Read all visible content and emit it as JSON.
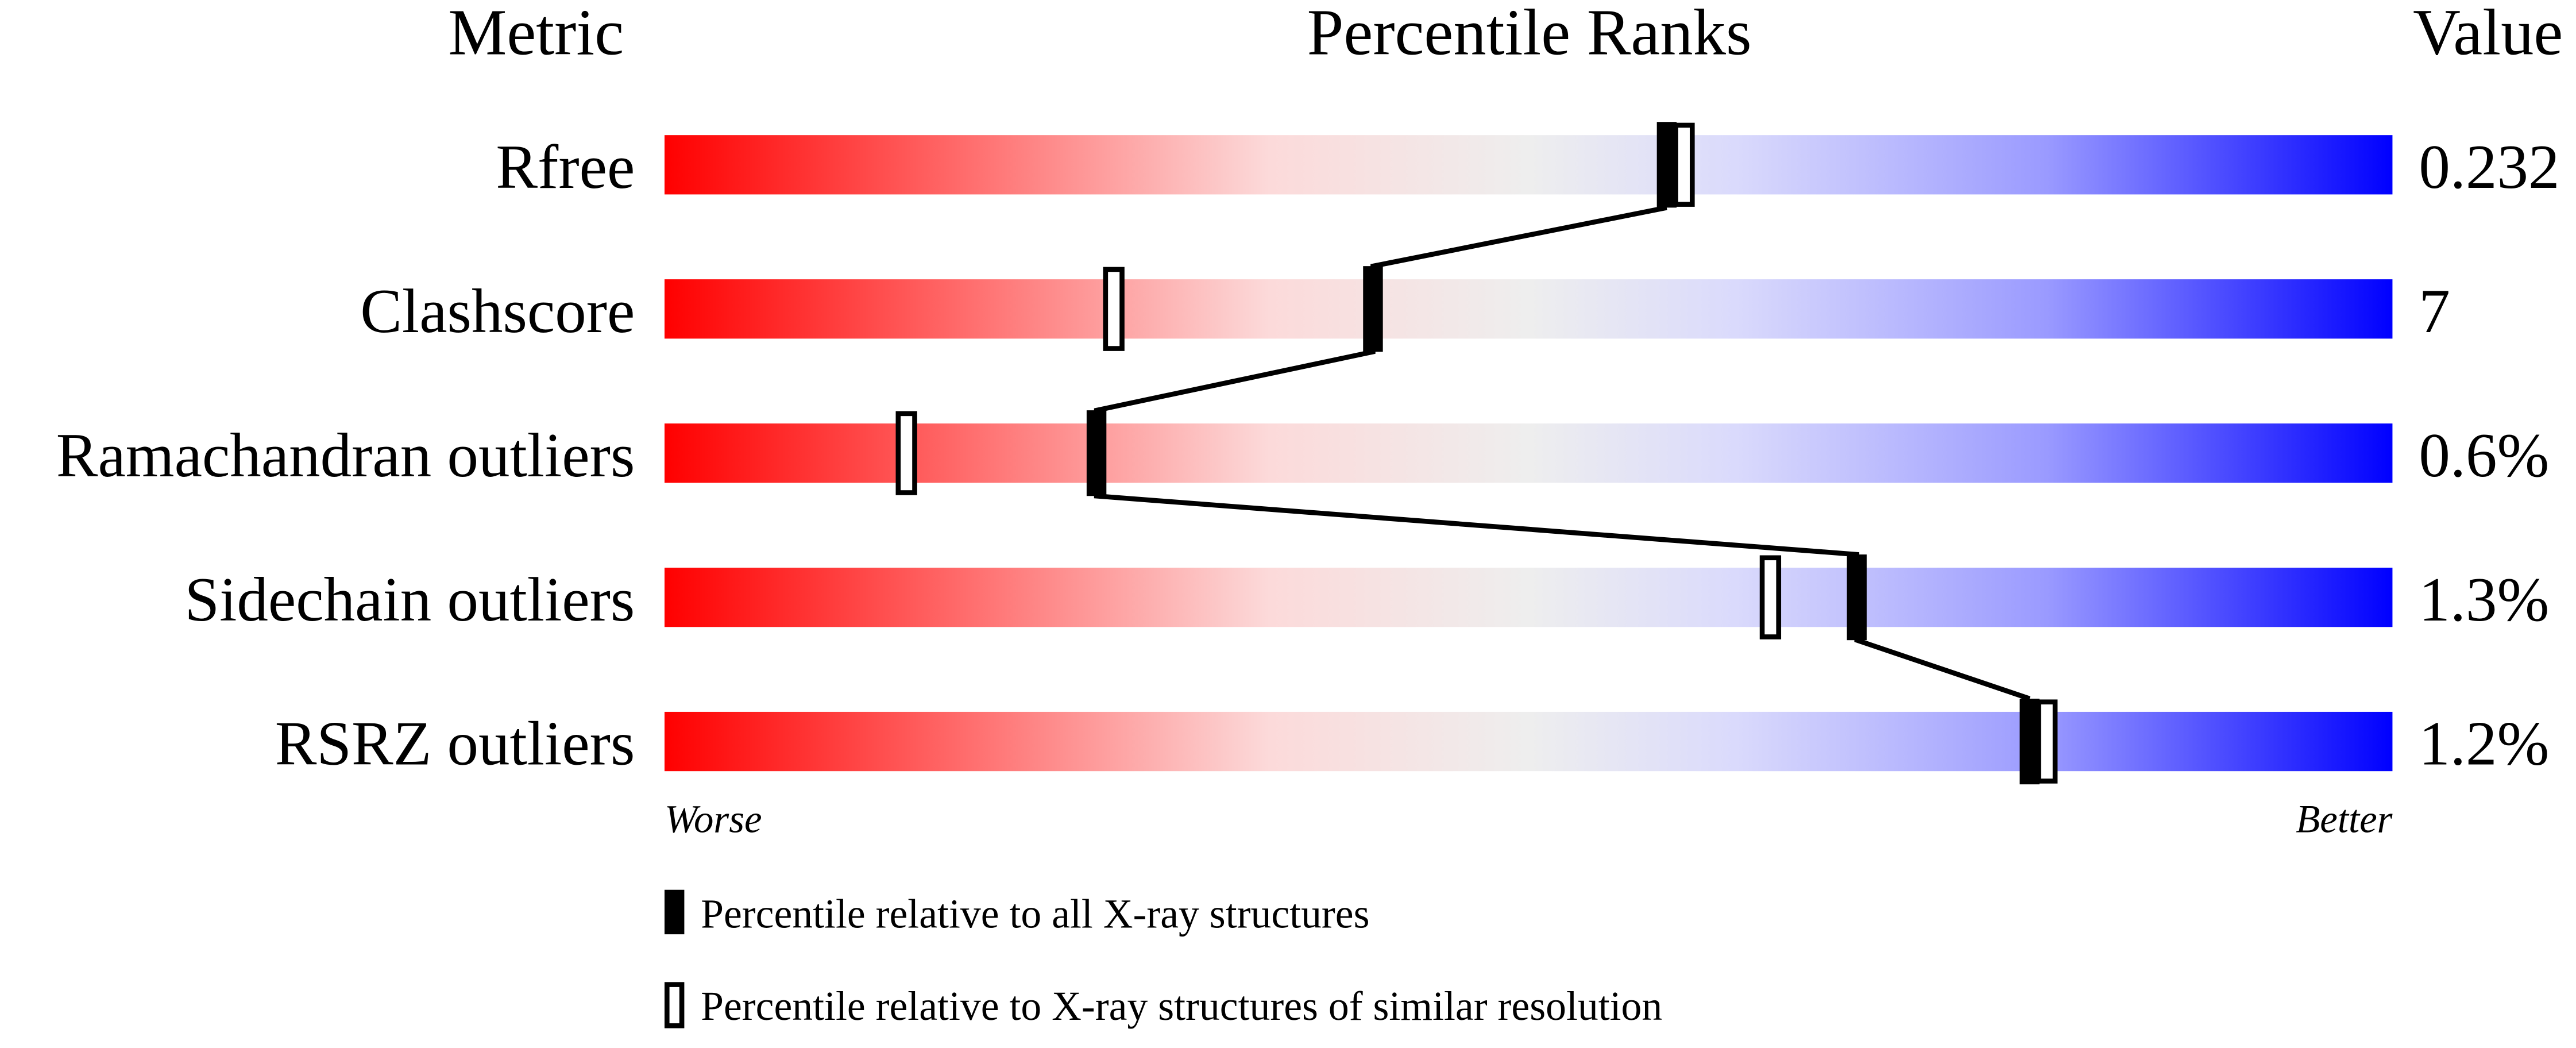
{
  "chart_data": {
    "type": "percentile-bar",
    "headers": {
      "metric": "Metric",
      "ranks": "Percentile Ranks",
      "value": "Value"
    },
    "xlim": [
      0,
      100
    ],
    "metrics": [
      {
        "name": "Rfree",
        "value": "0.232",
        "percentile_all": 58,
        "percentile_similar": 59
      },
      {
        "name": "Clashscore",
        "value": "7",
        "percentile_all": 41,
        "percentile_similar": 26
      },
      {
        "name": "Ramachandran outliers",
        "value": "0.6%",
        "percentile_all": 25,
        "percentile_similar": 14
      },
      {
        "name": "Sidechain outliers",
        "value": "1.3%",
        "percentile_all": 69,
        "percentile_similar": 64
      },
      {
        "name": "RSRZ outliers",
        "value": "1.2%",
        "percentile_all": 79,
        "percentile_similar": 80
      }
    ],
    "axis_labels": {
      "left": "Worse",
      "right": "Better"
    },
    "legend": {
      "filled": "Percentile relative to all X-ray structures",
      "hollow": "Percentile relative to X-ray structures of similar resolution"
    },
    "colors": {
      "worse": "#ff0000",
      "middle": "#eeeeee",
      "better": "#0000ff",
      "marker": "#000000"
    }
  }
}
